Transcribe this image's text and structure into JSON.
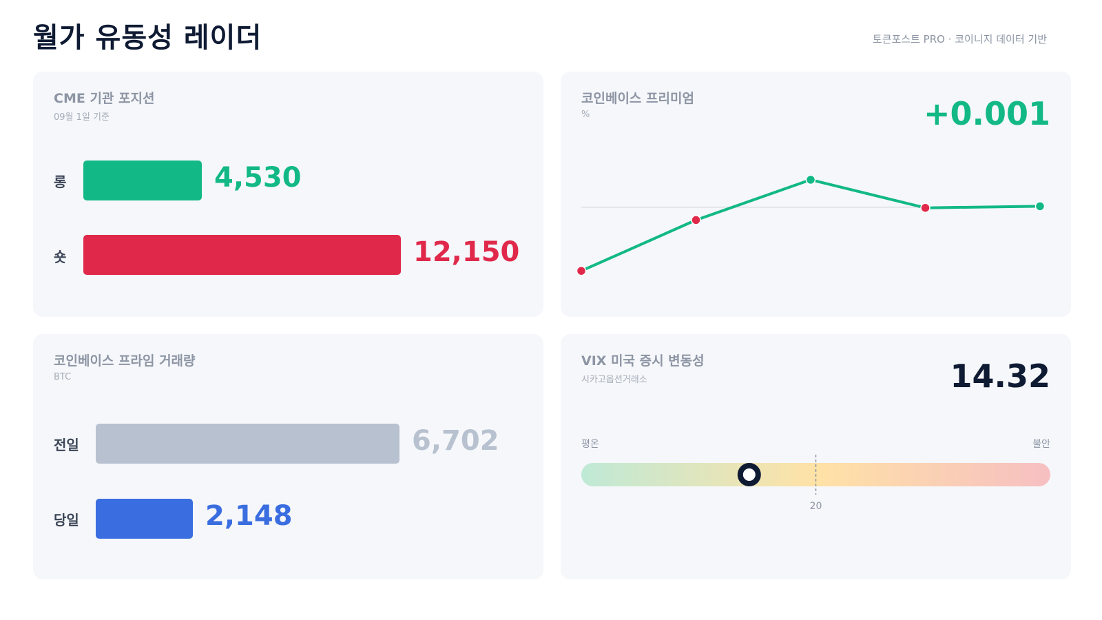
{
  "header": {
    "title": "월가 유동성 레이더",
    "source": "토큰포스트 PRO · 코이니지 데이터 기반"
  },
  "cme": {
    "title": "CME 기관 포지션",
    "subtitle": "09월 1일 기준",
    "rows": [
      {
        "label": "롱",
        "value": "4,530",
        "amount": 4530,
        "color": "#12b886"
      },
      {
        "label": "숏",
        "value": "12,150",
        "amount": 12150,
        "color": "#e0294a"
      }
    ]
  },
  "premium": {
    "title": "코인베이스 프리미엄",
    "unit": "%",
    "value": "+0.001",
    "value_color": "#12b886",
    "line_color": "#12b886",
    "points": [
      {
        "value": -0.06,
        "color": "#e0294a"
      },
      {
        "value": -0.012,
        "color": "#e0294a"
      },
      {
        "value": 0.026,
        "color": "#12b886"
      },
      {
        "value": -0.0005,
        "color": "#e0294a"
      },
      {
        "value": 0.001,
        "color": "#12b886"
      }
    ],
    "ylim": [
      -0.08,
      0.05
    ],
    "baseline": 0
  },
  "volume": {
    "title": "코인베이스 프라임 거래량",
    "subtitle": "BTC",
    "rows": [
      {
        "label": "전일",
        "value": "6,702",
        "amount": 6702,
        "color": "#b8c1cf",
        "value_color": "#b8c1cf"
      },
      {
        "label": "당일",
        "value": "2,148",
        "amount": 2148,
        "color": "#3a6ee0",
        "value_color": "#3a6ee0"
      }
    ]
  },
  "vix": {
    "title": "VIX 미국 증시 변동성",
    "subtitle": "시카고옵션거래소",
    "value": "14.32",
    "level": 14.32,
    "scale_min": 0,
    "scale_max": 40,
    "tick": "20",
    "tick_value": 20,
    "left_label": "평온",
    "right_label": "불안"
  }
}
